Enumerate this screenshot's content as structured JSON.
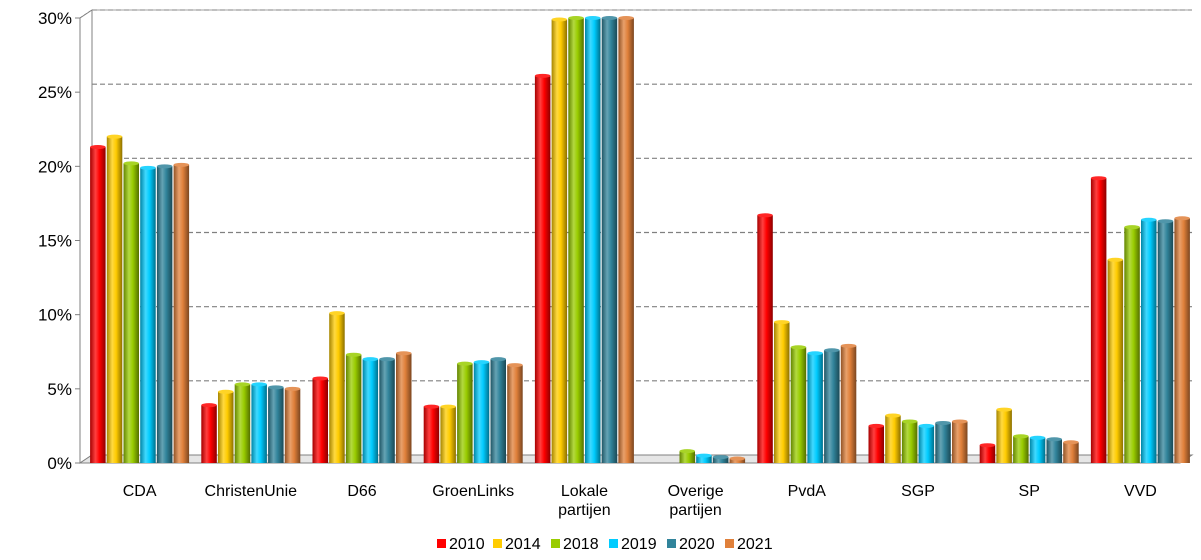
{
  "chart_data": {
    "type": "bar",
    "title": "",
    "xlabel": "",
    "ylabel": "",
    "ylim": [
      0,
      30
    ],
    "y_ticks": [
      "0%",
      "5%",
      "10%",
      "15%",
      "20%",
      "25%",
      "30%"
    ],
    "y_tick_values": [
      0,
      5,
      10,
      15,
      20,
      25,
      30
    ],
    "grid": true,
    "legend_position": "bottom",
    "categories": [
      [
        "CDA"
      ],
      [
        "ChristenUnie"
      ],
      [
        "D66"
      ],
      [
        "GroenLinks"
      ],
      [
        "Lokale",
        "partijen"
      ],
      [
        "Overige",
        "partijen"
      ],
      [
        "PvdA"
      ],
      [
        "SGP"
      ],
      [
        "SP"
      ],
      [
        "VVD"
      ]
    ],
    "series": [
      {
        "name": "2010",
        "color": "#ff0000",
        "values": [
          21.3,
          3.9,
          5.7,
          3.8,
          26.1,
          0.0,
          16.7,
          2.5,
          1.2,
          19.2
        ]
      },
      {
        "name": "2014",
        "color": "#ffcc00",
        "values": [
          22.0,
          4.8,
          10.1,
          3.8,
          29.9,
          0.0,
          9.5,
          3.2,
          3.6,
          13.7
        ]
      },
      {
        "name": "2018",
        "color": "#99cc00",
        "values": [
          20.2,
          5.3,
          7.3,
          6.7,
          30.0,
          0.8,
          7.8,
          2.8,
          1.8,
          15.9
        ]
      },
      {
        "name": "2019",
        "color": "#00ccff",
        "values": [
          19.9,
          5.3,
          7.0,
          6.8,
          30.0,
          0.5,
          7.4,
          2.5,
          1.7,
          16.4
        ]
      },
      {
        "name": "2020",
        "color": "#31849b",
        "values": [
          20.0,
          5.1,
          7.0,
          7.0,
          30.0,
          0.4,
          7.6,
          2.7,
          1.6,
          16.3
        ]
      },
      {
        "name": "2021",
        "color": "#e0803a",
        "values": [
          20.1,
          5.0,
          7.4,
          6.6,
          30.0,
          0.3,
          7.9,
          2.8,
          1.4,
          16.5
        ]
      }
    ]
  }
}
